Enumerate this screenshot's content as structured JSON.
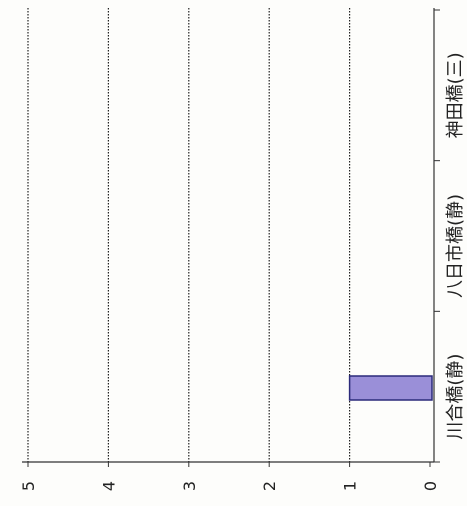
{
  "chart_data": {
    "type": "bar",
    "orientation": "rotated-90",
    "categories": [
      "川合橋(静)",
      "八日市橋(静)",
      "神田橋(三)"
    ],
    "values": [
      1,
      0,
      0
    ],
    "value_ticks": [
      "0",
      "1",
      "2",
      "3",
      "4",
      "5"
    ],
    "ylim": [
      0,
      5
    ],
    "grid": true,
    "bar_color": "#9a8fd8",
    "bar_stroke": "#2b2a7a",
    "grid_color": "#222222"
  }
}
